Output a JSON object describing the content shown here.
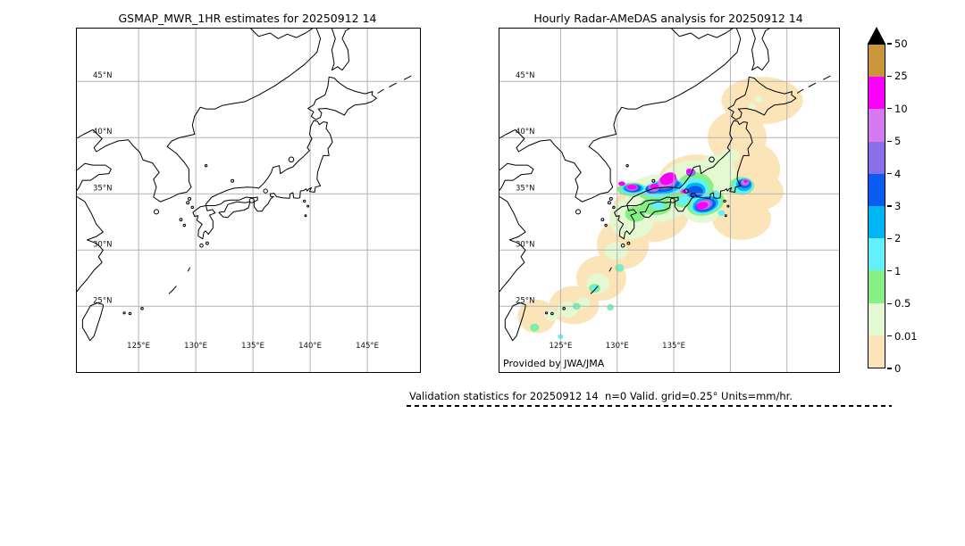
{
  "figure": {
    "panels": [
      {
        "id": "gsmap",
        "title": "GSMAP_MWR_1HR estimates for 20250912 14",
        "lat_labels": [
          "45°N",
          "40°N",
          "35°N",
          "30°N",
          "25°N"
        ],
        "lon_labels": [
          "125°E",
          "130°E",
          "135°E",
          "140°E",
          "145°E"
        ],
        "has_data": false
      },
      {
        "id": "radar",
        "title": "Hourly Radar-AMeDAS analysis for 20250912 14",
        "lat_labels": [
          "45°N",
          "40°N",
          "35°N",
          "30°N",
          "25°N"
        ],
        "lon_labels": [
          "125°E",
          "130°E",
          "135°E"
        ],
        "has_data": true,
        "credit": "Provided by JWA/JMA"
      }
    ],
    "colorbar": {
      "tick_labels": [
        "50",
        "25",
        "10",
        "5",
        "4",
        "3",
        "2",
        "1",
        "0.5",
        "0.01",
        "0"
      ],
      "colors_top_to_bottom": [
        "#c9963c",
        "#fa00fa",
        "#d678f0",
        "#8a70e8",
        "#0a5cf0",
        "#00b5f2",
        "#62f0fa",
        "#86ef86",
        "#e4f8d2",
        "#fbe4b8"
      ],
      "overflow_marker_color": "#000000"
    },
    "footer": "Validation statistics for 20250912 14  n=0 Valid. grid=0.25° Units=mm/hr."
  },
  "chart_data": {
    "type": "heatmap",
    "subtype": "geographic precipitation shading over Japan, equirectangular lat/lon panels",
    "units": "mm/hr",
    "levels": [
      0,
      0.01,
      0.5,
      1,
      2,
      3,
      4,
      5,
      10,
      25,
      50
    ],
    "n_valid_points": 0,
    "grid_resolution_deg": 0.25,
    "grid": {
      "lons": [
        125,
        130,
        135,
        140,
        145
      ],
      "lats": [
        25,
        30,
        35,
        40,
        45
      ],
      "lats_desc": [
        45,
        40,
        35,
        30,
        25
      ],
      "lon_range": [
        119.6,
        149.6
      ],
      "lat_range": [
        19.15,
        49.7
      ],
      "gridline_color": "#b3b3b3"
    },
    "panels": [
      {
        "name": "GSMAP_MWR_1HR estimates",
        "shading": "none (empty map, n=0)"
      },
      {
        "name": "Hourly Radar-AMeDAS analysis",
        "shading": "banded precipitation blobs, see radar_blobs"
      }
    ],
    "band_order": [
      "0-0.01",
      "0.01-0.5",
      "0.5-1",
      "1-2",
      "2-3",
      "3-4",
      "4-5",
      "5-10",
      "10-25",
      "25-50"
    ],
    "band_colors": {
      "0-0.01": "#fbe4b8",
      "0.01-0.5": "#e4f8d2",
      "0.5-1": "#86ef86",
      "1-2": "#62f0fa",
      "2-3": "#00b5f2",
      "3-4": "#0a5cf0",
      "4-5": "#8a70e8",
      "5-10": "#d678f0",
      "10-25": "#fa00fa",
      "25-50": "#c9963c"
    },
    "radar_blobs": {
      "0-0.01": [
        [
          142.8,
          43.3,
          3.6,
          2.1,
          0
        ],
        [
          140.6,
          40.0,
          2.6,
          2.4,
          0
        ],
        [
          141.8,
          37.2,
          2.6,
          2.4,
          0
        ],
        [
          142.7,
          35.2,
          2.0,
          1.6,
          0
        ],
        [
          141.0,
          32.8,
          2.6,
          1.9,
          0
        ],
        [
          139.6,
          34.2,
          2.2,
          1.6,
          0
        ],
        [
          137.0,
          35.6,
          3.6,
          2.9,
          0
        ],
        [
          133.0,
          33.4,
          3.4,
          2.7,
          0
        ],
        [
          130.5,
          30.5,
          2.3,
          2.2,
          0
        ],
        [
          128.6,
          27.5,
          2.2,
          2.0,
          0
        ],
        [
          126.2,
          25.1,
          2.2,
          1.7,
          0
        ],
        [
          122.9,
          24.1,
          1.7,
          1.5,
          0
        ]
      ],
      "0.01-0.5": [
        [
          136.8,
          35.6,
          3.2,
          2.4,
          0
        ],
        [
          133.6,
          34.6,
          2.9,
          2.1,
          0
        ],
        [
          131.3,
          32.8,
          2.0,
          1.8,
          0
        ],
        [
          138.8,
          36.8,
          1.7,
          1.7,
          0
        ],
        [
          137.5,
          33.4,
          1.6,
          1.0,
          0
        ],
        [
          140.0,
          38.4,
          0.8,
          0.6,
          0
        ],
        [
          139.3,
          37.9,
          0.5,
          0.4,
          0
        ],
        [
          129.9,
          29.9,
          1.0,
          0.8,
          0
        ],
        [
          128.3,
          27.0,
          1.0,
          0.9,
          0
        ],
        [
          125.6,
          24.7,
          0.9,
          0.7,
          0
        ],
        [
          124.2,
          24.2,
          0.6,
          0.5,
          0
        ],
        [
          127.0,
          25.3,
          0.6,
          0.5,
          0
        ],
        [
          142.5,
          43.4,
          0.35,
          0.3,
          0
        ],
        [
          141.9,
          42.8,
          0.3,
          0.25,
          0
        ]
      ],
      "0.5-1": [
        [
          134.2,
          35.3,
          2.3,
          0.9,
          -8
        ],
        [
          136.9,
          35.6,
          1.6,
          1.3,
          0
        ],
        [
          137.8,
          34.2,
          1.7,
          1.1,
          -15
        ],
        [
          133.4,
          33.9,
          1.4,
          0.8,
          0
        ],
        [
          131.6,
          33.2,
          0.9,
          0.7,
          0
        ],
        [
          141.0,
          35.7,
          1.1,
          0.8,
          0
        ],
        [
          131.3,
          35.4,
          1.3,
          0.6,
          0
        ],
        [
          135.7,
          34.4,
          0.8,
          0.6,
          0
        ],
        [
          128.0,
          26.6,
          0.5,
          0.4,
          0
        ],
        [
          130.2,
          28.4,
          0.4,
          0.35,
          0
        ],
        [
          126.4,
          25.0,
          0.35,
          0.3,
          0
        ],
        [
          129.4,
          24.9,
          0.3,
          0.3,
          0
        ],
        [
          122.7,
          23.1,
          0.4,
          0.35,
          0
        ]
      ],
      "1-2": [
        [
          134.1,
          35.5,
          1.9,
          0.75,
          -10
        ],
        [
          136.9,
          35.4,
          1.2,
          1.0,
          0
        ],
        [
          137.8,
          34.1,
          1.4,
          0.85,
          -15
        ],
        [
          141.1,
          35.7,
          0.9,
          0.7,
          0
        ],
        [
          131.4,
          35.4,
          1.1,
          0.5,
          0
        ],
        [
          133.6,
          34.0,
          0.6,
          0.4,
          0
        ],
        [
          135.8,
          34.4,
          0.5,
          0.4,
          0
        ],
        [
          138.7,
          35.0,
          0.35,
          0.3,
          0
        ],
        [
          139.2,
          33.3,
          0.3,
          0.25,
          0
        ],
        [
          128.0,
          26.6,
          0.3,
          0.25,
          0
        ],
        [
          130.3,
          28.4,
          0.25,
          0.2,
          0
        ],
        [
          126.4,
          25.0,
          0.2,
          0.2,
          0
        ],
        [
          129.4,
          24.9,
          0.2,
          0.2,
          0
        ],
        [
          125.0,
          22.3,
          0.25,
          0.2,
          0
        ],
        [
          122.7,
          23.1,
          0.2,
          0.18,
          0
        ]
      ],
      "2-3": [
        [
          134.2,
          35.6,
          1.5,
          0.6,
          -10
        ],
        [
          136.9,
          35.3,
          0.9,
          0.7,
          0
        ],
        [
          137.8,
          34.05,
          1.15,
          0.7,
          -15
        ],
        [
          141.2,
          35.8,
          0.7,
          0.55,
          0
        ],
        [
          131.4,
          35.5,
          0.9,
          0.4,
          0
        ]
      ],
      "3-4": [
        [
          134.3,
          35.7,
          1.2,
          0.5,
          -12
        ],
        [
          133.1,
          35.4,
          0.6,
          0.4,
          0
        ],
        [
          136.9,
          35.2,
          0.7,
          0.5,
          0
        ],
        [
          137.8,
          34.0,
          0.95,
          0.55,
          -15
        ],
        [
          141.25,
          35.9,
          0.55,
          0.4,
          0
        ],
        [
          131.4,
          35.5,
          0.7,
          0.35,
          0
        ],
        [
          136.5,
          36.9,
          0.4,
          0.35,
          0
        ]
      ],
      "4-5": [
        [
          134.4,
          36.0,
          0.95,
          0.55,
          -20
        ],
        [
          133.2,
          35.5,
          0.5,
          0.35,
          0
        ],
        [
          136.6,
          36.9,
          0.35,
          0.3,
          0
        ],
        [
          137.7,
          34.05,
          0.75,
          0.45,
          -15
        ],
        [
          141.3,
          36.0,
          0.4,
          0.3,
          0
        ],
        [
          131.3,
          35.55,
          0.55,
          0.3,
          0
        ]
      ],
      "5-10": [
        [
          134.4,
          36.2,
          0.85,
          0.55,
          -25
        ],
        [
          133.3,
          35.6,
          0.45,
          0.3,
          0
        ],
        [
          136.4,
          37.0,
          0.3,
          0.28,
          0
        ],
        [
          137.6,
          34.0,
          0.62,
          0.38,
          -15
        ],
        [
          141.3,
          36.05,
          0.3,
          0.22,
          0
        ],
        [
          131.3,
          35.6,
          0.5,
          0.28,
          0
        ],
        [
          135.9,
          35.2,
          0.35,
          0.25,
          0
        ]
      ],
      "10-25": [
        [
          134.5,
          36.35,
          0.75,
          0.5,
          -25
        ],
        [
          133.3,
          35.65,
          0.4,
          0.25,
          0
        ],
        [
          131.3,
          35.6,
          0.45,
          0.22,
          0
        ],
        [
          130.4,
          35.9,
          0.3,
          0.2,
          0
        ],
        [
          136.35,
          37.0,
          0.25,
          0.22,
          0
        ],
        [
          137.5,
          33.95,
          0.55,
          0.32,
          -15
        ],
        [
          135.9,
          35.2,
          0.2,
          0.15,
          0
        ],
        [
          141.35,
          36.1,
          0.18,
          0.14,
          0
        ]
      ],
      "25-50": []
    }
  }
}
